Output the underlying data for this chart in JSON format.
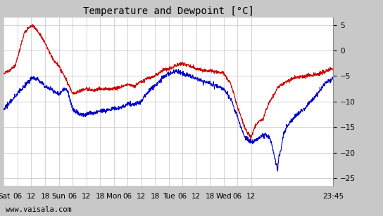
{
  "title": "Temperature and Dewpoint [°C]",
  "background_color": "#c8c8c8",
  "plot_bg_color": "#ffffff",
  "grid_color": "#c0c0c0",
  "temp_color": "#cc0000",
  "dew_color": "#0000cc",
  "line_width": 0.8,
  "x_tick_labels": [
    "Sat",
    "06",
    "12",
    "18",
    "Sun",
    "06",
    "12",
    "18",
    "Mon",
    "06",
    "12",
    "18",
    "Tue",
    "06",
    "12",
    "18",
    "Wed",
    "06",
    "12",
    "23:45"
  ],
  "x_tick_positions": [
    0,
    6,
    12,
    18,
    24,
    30,
    36,
    42,
    48,
    54,
    60,
    66,
    72,
    78,
    84,
    90,
    96,
    102,
    108,
    143.75
  ],
  "xlim": [
    0,
    143.75
  ],
  "ylim_top": 6.5,
  "ylim_bottom": -26.5,
  "ytick_values": [
    5,
    0,
    -5,
    -10,
    -15,
    -20,
    -25
  ],
  "watermark": "www.vaisala.com",
  "title_fontsize": 10,
  "tick_fontsize": 7.5,
  "watermark_fontsize": 7.5,
  "temp_keys": [
    [
      0,
      -4.5
    ],
    [
      5,
      -3.0
    ],
    [
      9,
      3.5
    ],
    [
      11,
      4.5
    ],
    [
      12.5,
      5.0
    ],
    [
      14,
      4.2
    ],
    [
      16,
      3.0
    ],
    [
      18,
      1.5
    ],
    [
      20,
      -0.5
    ],
    [
      22,
      -2.0
    ],
    [
      24,
      -3.0
    ],
    [
      27,
      -5.5
    ],
    [
      30,
      -8.5
    ],
    [
      33,
      -8.0
    ],
    [
      36,
      -7.5
    ],
    [
      39,
      -7.8
    ],
    [
      42,
      -7.5
    ],
    [
      45,
      -7.5
    ],
    [
      48,
      -7.5
    ],
    [
      52,
      -7.0
    ],
    [
      54,
      -6.5
    ],
    [
      57,
      -7.0
    ],
    [
      60,
      -6.0
    ],
    [
      63,
      -5.5
    ],
    [
      66,
      -5.0
    ],
    [
      69,
      -4.0
    ],
    [
      72,
      -3.5
    ],
    [
      75,
      -3.0
    ],
    [
      78,
      -2.5
    ],
    [
      81,
      -3.0
    ],
    [
      84,
      -3.5
    ],
    [
      87,
      -4.0
    ],
    [
      90,
      -4.0
    ],
    [
      93,
      -4.2
    ],
    [
      96,
      -4.5
    ],
    [
      99,
      -6.5
    ],
    [
      102,
      -11.0
    ],
    [
      105,
      -15.0
    ],
    [
      107,
      -16.5
    ],
    [
      108,
      -17.0
    ],
    [
      109,
      -15.5
    ],
    [
      111,
      -14.0
    ],
    [
      113,
      -13.5
    ],
    [
      116,
      -10.0
    ],
    [
      120,
      -7.0
    ],
    [
      126,
      -5.5
    ],
    [
      132,
      -5.0
    ],
    [
      138,
      -4.5
    ],
    [
      143.75,
      -3.5
    ]
  ],
  "dew_keys": [
    [
      0,
      -11.5
    ],
    [
      4,
      -9.5
    ],
    [
      8,
      -7.5
    ],
    [
      10,
      -6.5
    ],
    [
      12,
      -5.5
    ],
    [
      14,
      -5.5
    ],
    [
      16,
      -6.0
    ],
    [
      18,
      -7.0
    ],
    [
      20,
      -7.5
    ],
    [
      22,
      -8.0
    ],
    [
      24,
      -8.5
    ],
    [
      26,
      -7.5
    ],
    [
      28,
      -8.0
    ],
    [
      30,
      -11.5
    ],
    [
      33,
      -12.5
    ],
    [
      36,
      -12.5
    ],
    [
      39,
      -12.2
    ],
    [
      42,
      -12.0
    ],
    [
      44,
      -11.8
    ],
    [
      48,
      -11.5
    ],
    [
      52,
      -11.0
    ],
    [
      54,
      -10.5
    ],
    [
      57,
      -10.5
    ],
    [
      60,
      -10.0
    ],
    [
      63,
      -8.0
    ],
    [
      66,
      -7.0
    ],
    [
      69,
      -5.5
    ],
    [
      72,
      -4.5
    ],
    [
      75,
      -4.0
    ],
    [
      78,
      -4.5
    ],
    [
      81,
      -5.0
    ],
    [
      84,
      -5.5
    ],
    [
      87,
      -6.0
    ],
    [
      90,
      -6.5
    ],
    [
      93,
      -7.0
    ],
    [
      96,
      -7.5
    ],
    [
      99,
      -9.5
    ],
    [
      102,
      -13.0
    ],
    [
      105,
      -17.0
    ],
    [
      107,
      -17.5
    ],
    [
      108,
      -18.0
    ],
    [
      109,
      -17.8
    ],
    [
      110,
      -17.5
    ],
    [
      112,
      -17.0
    ],
    [
      114,
      -16.5
    ],
    [
      116,
      -17.0
    ],
    [
      117,
      -18.5
    ],
    [
      118,
      -20.5
    ],
    [
      119,
      -22.5
    ],
    [
      119.5,
      -23.5
    ],
    [
      120,
      -21.0
    ],
    [
      121,
      -19.5
    ],
    [
      122,
      -16.5
    ],
    [
      124,
      -14.5
    ],
    [
      128,
      -12.5
    ],
    [
      132,
      -11.0
    ],
    [
      136,
      -9.0
    ],
    [
      140,
      -6.5
    ],
    [
      143.75,
      -5.5
    ]
  ]
}
